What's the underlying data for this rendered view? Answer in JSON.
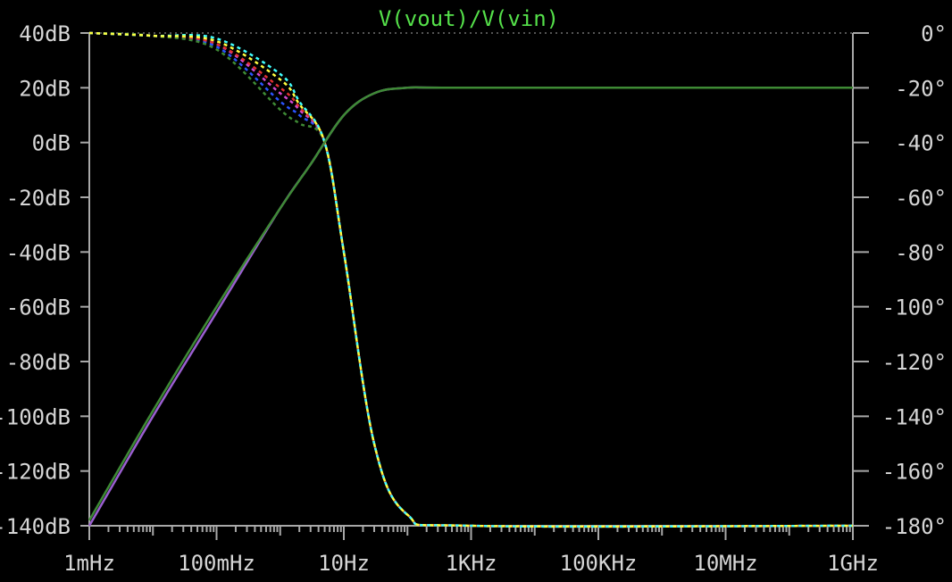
{
  "chart_data": {
    "type": "line",
    "title": "V(vout)/V(vin)",
    "title_color": "#55e04a",
    "background": "#000000",
    "axis_color": "#a8a8a8",
    "x_scale": "log",
    "x_range_hz": [
      0.001,
      1000000000
    ],
    "x_ticks": [
      "1mHz",
      "100mHz",
      "10Hz",
      "1KHz",
      "100KHz",
      "10MHz",
      "1GHz"
    ],
    "y_left_range_db": [
      -140,
      40
    ],
    "y_left_ticks": [
      "40dB",
      "20dB",
      "0dB",
      "-20dB",
      "-40dB",
      "-60dB",
      "-80dB",
      "-100dB",
      "-120dB",
      "-140dB"
    ],
    "y_right_range_deg": [
      -180,
      0
    ],
    "y_right_ticks": [
      "0°",
      "-20°",
      "-40°",
      "-60°",
      "-80°",
      "-100°",
      "-120°",
      "-140°",
      "-160°",
      "-180°"
    ],
    "magnitude_curves": [
      {
        "style": "solid",
        "color": "#9a5fd0",
        "x_hz": [
          0.001,
          0.01,
          0.1,
          1,
          3,
          10,
          30,
          100,
          1000,
          1000000000
        ],
        "y_db": [
          -140,
          -100,
          -62,
          -24,
          -8,
          10,
          18,
          20,
          20,
          20
        ]
      },
      {
        "style": "solid",
        "color": "#3e8a35",
        "x_hz": [
          0.001,
          0.01,
          0.1,
          1,
          3,
          10,
          30,
          100,
          1000,
          1000000000
        ],
        "y_db": [
          -138,
          -98,
          -60,
          -24,
          -8,
          10,
          18,
          20,
          20,
          20
        ]
      }
    ],
    "phase_curves": [
      {
        "style": "dashed",
        "color": "#2b55ff",
        "x_hz": [
          0.001,
          0.01,
          0.1,
          1,
          2,
          5,
          10,
          30,
          100,
          1000,
          1000000000
        ],
        "y_deg": [
          0,
          -1,
          -5,
          -25,
          -30,
          -40,
          -80,
          -150,
          -176,
          -180,
          -180
        ]
      },
      {
        "style": "dashed",
        "color": "#d04ad0",
        "x_hz": [
          0.001,
          0.01,
          0.1,
          1,
          2,
          5,
          10,
          30,
          100,
          1000,
          1000000000
        ],
        "y_deg": [
          0,
          -1,
          -4,
          -22,
          -28,
          -40,
          -80,
          -150,
          -176,
          -180,
          -180
        ]
      },
      {
        "style": "dashed",
        "color": "#e03030",
        "x_hz": [
          0.001,
          0.01,
          0.1,
          1,
          2,
          5,
          10,
          30,
          100,
          1000,
          1000000000
        ],
        "y_deg": [
          0,
          -1,
          -4,
          -20,
          -27,
          -40,
          -80,
          -150,
          -176,
          -180,
          -180
        ]
      },
      {
        "style": "dashed",
        "color": "#3e8a35",
        "x_hz": [
          0.001,
          0.01,
          0.1,
          1,
          2,
          5,
          10,
          30,
          100,
          1000,
          1000000000
        ],
        "y_deg": [
          0,
          -1,
          -6,
          -28,
          -33,
          -40,
          -80,
          -150,
          -176,
          -180,
          -180
        ]
      },
      {
        "style": "dashed",
        "color": "#40ffff",
        "x_hz": [
          0.001,
          0.01,
          0.1,
          1,
          2,
          5,
          10,
          30,
          100,
          1000,
          1000000000
        ],
        "y_deg": [
          0,
          -1,
          -2,
          -15,
          -25,
          -40,
          -80,
          -150,
          -176,
          -180,
          -180
        ]
      },
      {
        "style": "dashed",
        "color": "#ffff40",
        "x_hz": [
          0.001,
          0.01,
          0.1,
          1,
          2,
          5,
          10,
          30,
          100,
          1000,
          1000000000
        ],
        "y_deg": [
          0,
          -1,
          -3,
          -17,
          -26,
          -40,
          -80,
          -150,
          -176,
          -180,
          -180
        ]
      }
    ]
  }
}
